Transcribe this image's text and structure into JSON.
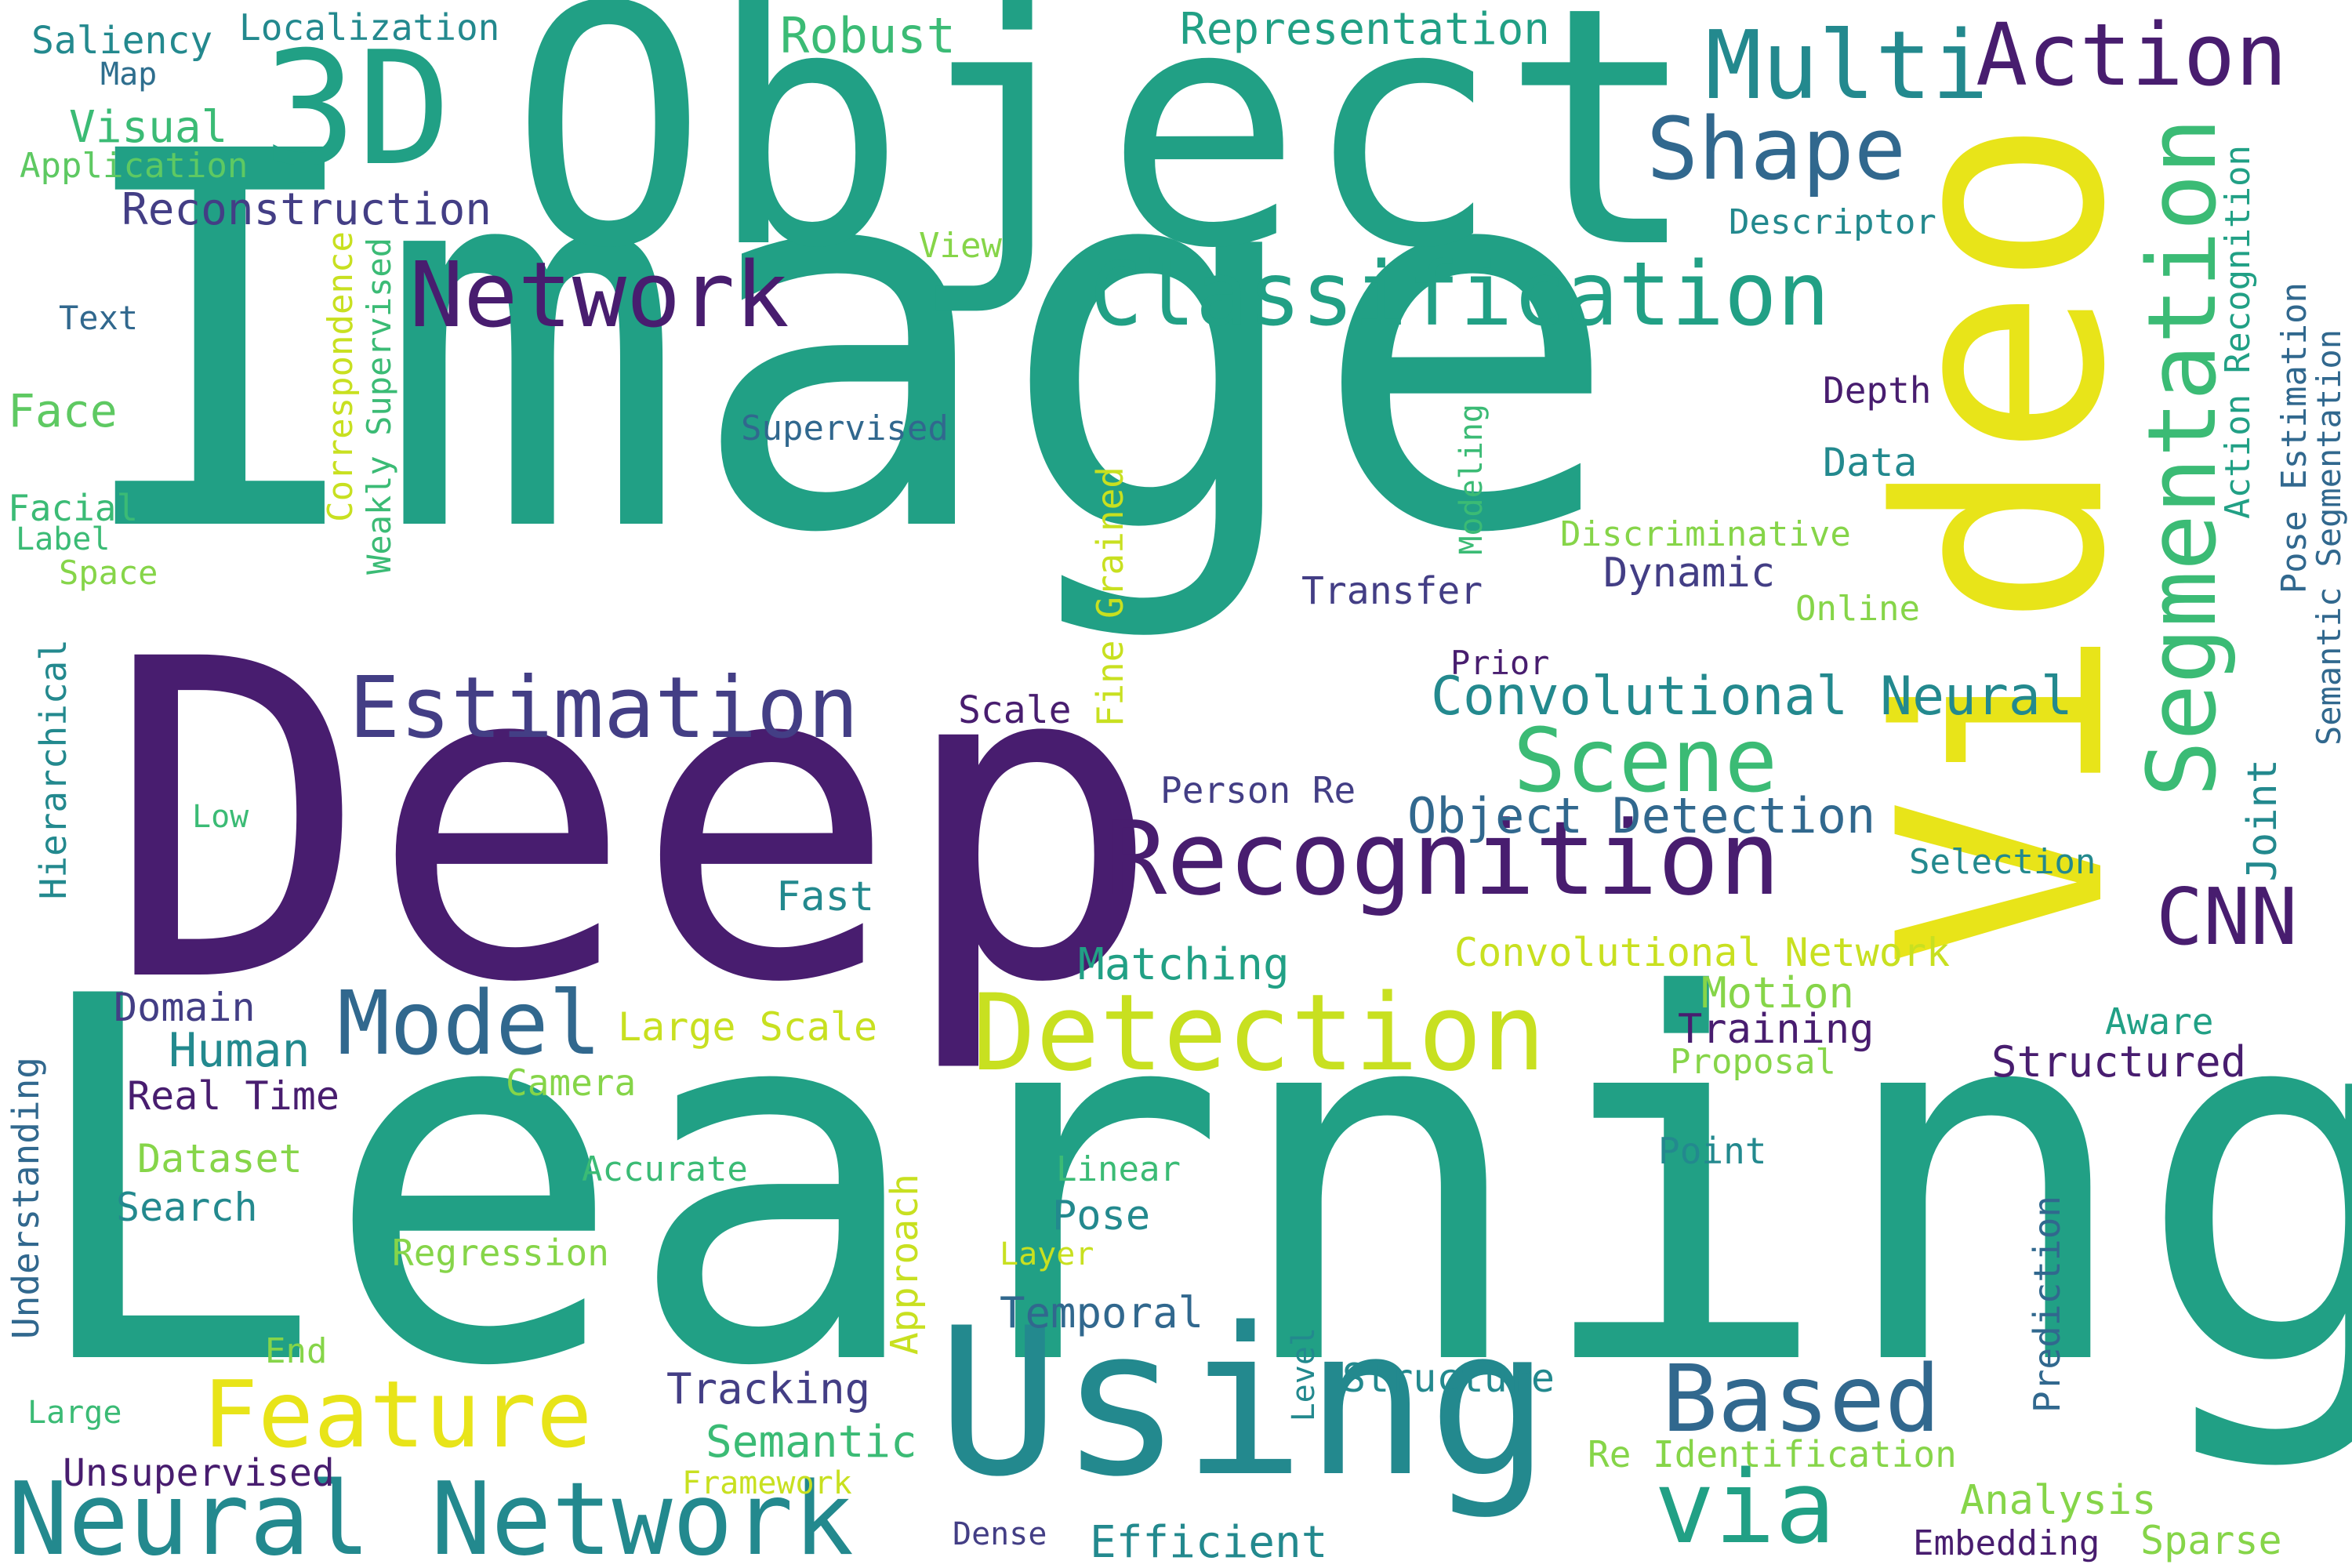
{
  "palette": {
    "teal": "#21a085",
    "dark_teal": "#23898e",
    "purple": "#481d6f",
    "indigo": "#433e85",
    "blue": "#2e6e8e",
    "steel": "#31688e",
    "yellow": "#e8e419",
    "lime": "#c8e020",
    "green": "#5ec962",
    "mint": "#3bbb75",
    "light_green": "#86d549",
    "background": "#ffffff"
  },
  "words": [
    {
      "text": "Image",
      "color": "teal"
    },
    {
      "text": "Learning",
      "color": "teal"
    },
    {
      "text": "Deep",
      "color": "purple"
    },
    {
      "text": "Object",
      "color": "teal"
    },
    {
      "text": "Video",
      "color": "yellow"
    },
    {
      "text": "Using",
      "color": "dark_teal"
    },
    {
      "text": "3D",
      "color": "teal"
    },
    {
      "text": "Recognition",
      "color": "purple"
    },
    {
      "text": "Detection",
      "color": "lime"
    },
    {
      "text": "Segmentation",
      "color": "mint"
    },
    {
      "text": "Classification",
      "color": "teal"
    },
    {
      "text": "Network",
      "color": "purple"
    },
    {
      "text": "Multi",
      "color": "dark_teal"
    },
    {
      "text": "Action",
      "color": "purple"
    },
    {
      "text": "Shape",
      "color": "steel"
    },
    {
      "text": "Estimation",
      "color": "indigo"
    },
    {
      "text": "Neural Network",
      "color": "dark_teal"
    },
    {
      "text": "Feature",
      "color": "yellow"
    },
    {
      "text": "Based",
      "color": "steel"
    },
    {
      "text": "Model",
      "color": "steel"
    },
    {
      "text": "Scene",
      "color": "mint"
    },
    {
      "text": "via",
      "color": "teal"
    },
    {
      "text": "CNN",
      "color": "purple"
    },
    {
      "text": "Convolutional Neural",
      "color": "dark_teal"
    },
    {
      "text": "Object Detection",
      "color": "steel"
    },
    {
      "text": "Robust",
      "color": "mint"
    },
    {
      "text": "Representation",
      "color": "teal"
    },
    {
      "text": "Reconstruction",
      "color": "indigo"
    },
    {
      "text": "Human",
      "color": "dark_teal"
    },
    {
      "text": "Visual",
      "color": "mint"
    },
    {
      "text": "Saliency",
      "color": "dark_teal"
    },
    {
      "text": "Map",
      "color": "blue"
    },
    {
      "text": "Localization",
      "color": "dark_teal"
    },
    {
      "text": "Application",
      "color": "green"
    },
    {
      "text": "Descriptor",
      "color": "dark_teal"
    },
    {
      "text": "View",
      "color": "light_green"
    },
    {
      "text": "Text",
      "color": "steel"
    },
    {
      "text": "Face",
      "color": "green"
    },
    {
      "text": "Facial",
      "color": "mint"
    },
    {
      "text": "Label",
      "color": "mint"
    },
    {
      "text": "Space",
      "color": "light_green"
    },
    {
      "text": "Correspondence",
      "color": "lime"
    },
    {
      "text": "Weakly Supervised",
      "color": "mint"
    },
    {
      "text": "Supervised",
      "color": "steel"
    },
    {
      "text": "Depth",
      "color": "purple"
    },
    {
      "text": "Data",
      "color": "dark_teal"
    },
    {
      "text": "Discriminative",
      "color": "light_green"
    },
    {
      "text": "Modeling",
      "color": "mint"
    },
    {
      "text": "Dynamic",
      "color": "indigo"
    },
    {
      "text": "Online",
      "color": "light_green"
    },
    {
      "text": "Transfer",
      "color": "indigo"
    },
    {
      "text": "Prior",
      "color": "purple"
    },
    {
      "text": "Fine Grained",
      "color": "lime"
    },
    {
      "text": "Scale",
      "color": "purple"
    },
    {
      "text": "Hierarchical",
      "color": "dark_teal"
    },
    {
      "text": "Low",
      "color": "mint"
    },
    {
      "text": "Fast",
      "color": "dark_teal"
    },
    {
      "text": "Person Re",
      "color": "indigo"
    },
    {
      "text": "Selection",
      "color": "dark_teal"
    },
    {
      "text": "Joint",
      "color": "dark_teal"
    },
    {
      "text": "Action Recognition",
      "color": "teal"
    },
    {
      "text": "Pose Estimation",
      "color": "steel"
    },
    {
      "text": "Semantic Segmentation",
      "color": "steel"
    },
    {
      "text": "Matching",
      "color": "teal"
    },
    {
      "text": "Convolutional Network",
      "color": "lime"
    },
    {
      "text": "Motion",
      "color": "light_green"
    },
    {
      "text": "Training",
      "color": "purple"
    },
    {
      "text": "Aware",
      "color": "teal"
    },
    {
      "text": "Structured",
      "color": "purple"
    },
    {
      "text": "Proposal",
      "color": "light_green"
    },
    {
      "text": "Domain",
      "color": "indigo"
    },
    {
      "text": "Real Time",
      "color": "purple"
    },
    {
      "text": "Large Scale",
      "color": "lime"
    },
    {
      "text": "Camera",
      "color": "light_green"
    },
    {
      "text": "Understanding",
      "color": "steel"
    },
    {
      "text": "Dataset",
      "color": "light_green"
    },
    {
      "text": "Accurate",
      "color": "mint"
    },
    {
      "text": "Search",
      "color": "dark_teal"
    },
    {
      "text": "Regression",
      "color": "light_green"
    },
    {
      "text": "Linear",
      "color": "mint"
    },
    {
      "text": "Pose",
      "color": "dark_teal"
    },
    {
      "text": "Layer",
      "color": "lime"
    },
    {
      "text": "Approach",
      "color": "lime"
    },
    {
      "text": "Temporal",
      "color": "steel"
    },
    {
      "text": "Point",
      "color": "dark_teal"
    },
    {
      "text": "Prediction",
      "color": "steel"
    },
    {
      "text": "End",
      "color": "light_green"
    },
    {
      "text": "Tracking",
      "color": "indigo"
    },
    {
      "text": "Level",
      "color": "dark_teal"
    },
    {
      "text": "Structure",
      "color": "dark_teal"
    },
    {
      "text": "Large",
      "color": "mint"
    },
    {
      "text": "Semantic",
      "color": "mint"
    },
    {
      "text": "Re Identification",
      "color": "light_green"
    },
    {
      "text": "Unsupervised",
      "color": "purple"
    },
    {
      "text": "Framework",
      "color": "lime"
    },
    {
      "text": "Analysis",
      "color": "light_green"
    },
    {
      "text": "Dense",
      "color": "indigo"
    },
    {
      "text": "Efficient",
      "color": "dark_teal"
    },
    {
      "text": "Embedding",
      "color": "purple"
    },
    {
      "text": "Sparse",
      "color": "light_green"
    }
  ]
}
